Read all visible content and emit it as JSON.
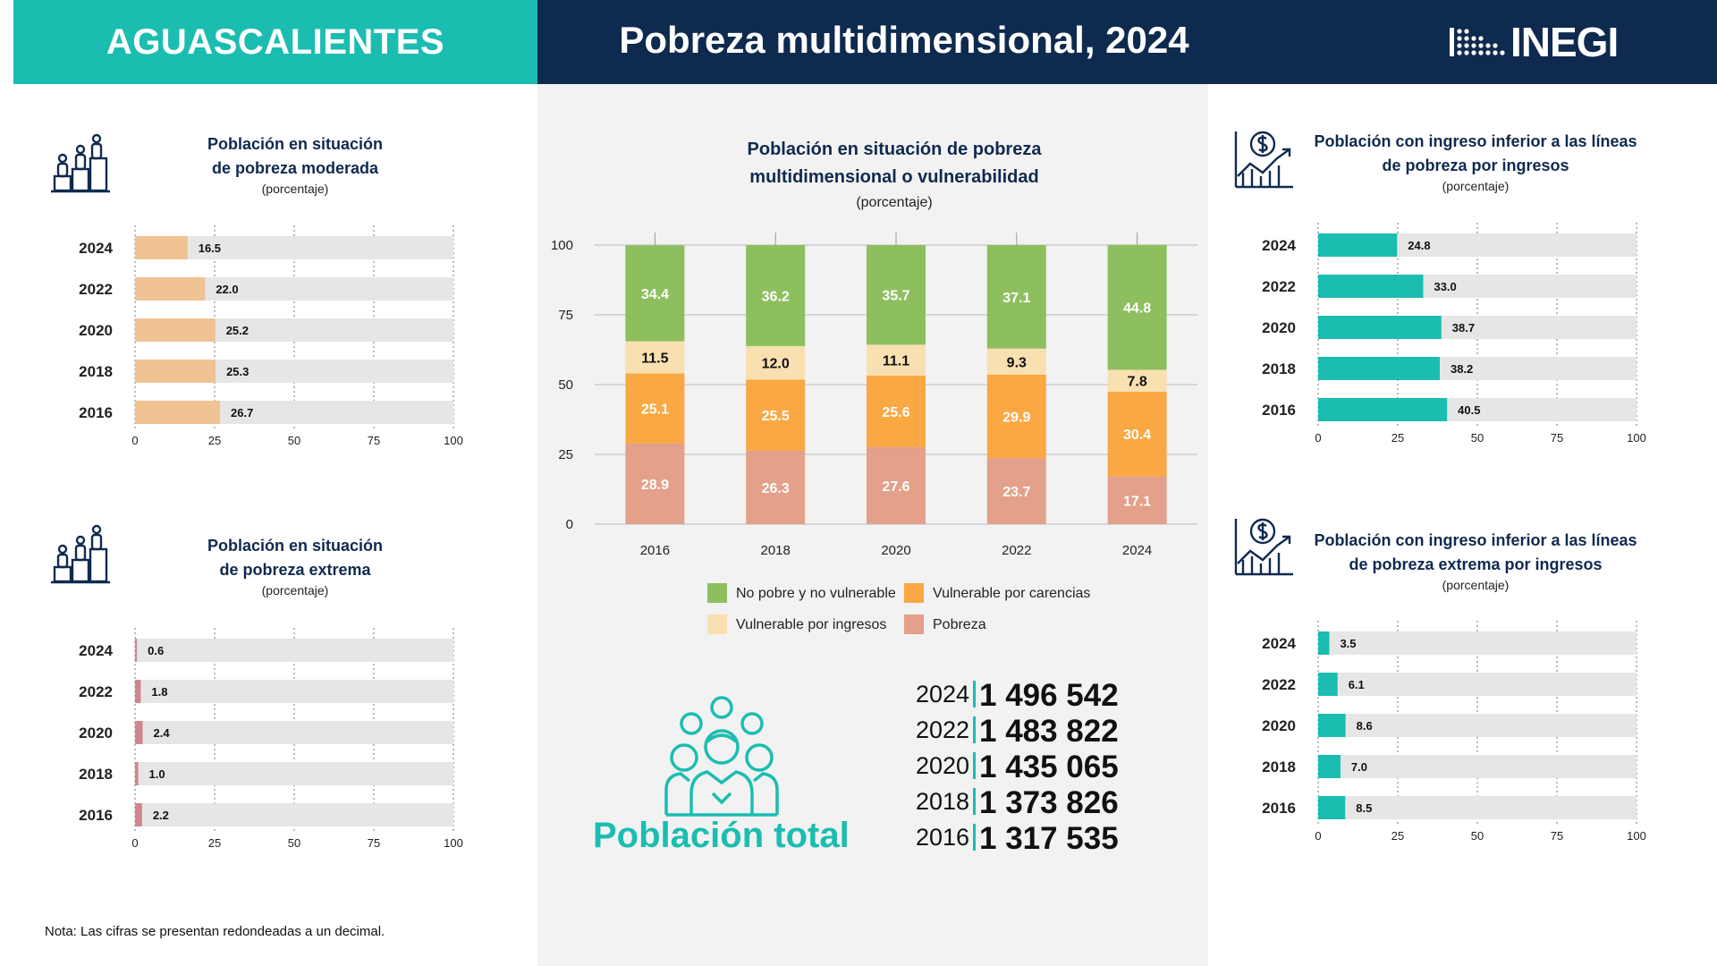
{
  "header": {
    "state": "AGUASCALIENTES",
    "title": "Pobreza multidimensional, 2024",
    "logo": "INEGI"
  },
  "panels": {
    "moderate": {
      "title_lines": [
        "Población en situación",
        "de pobreza moderada"
      ],
      "subtitle": "(porcentaje)",
      "icon": "people-podium-icon"
    },
    "extreme": {
      "title_lines": [
        "Población en situación",
        "de pobreza extrema"
      ],
      "subtitle": "(porcentaje)",
      "icon": "people-podium-icon"
    },
    "main": {
      "title_lines": [
        "Población en situación de pobreza",
        "multidimensional o vulnerabilidad"
      ],
      "subtitle": "(porcentaje)"
    },
    "income": {
      "title_lines": [
        "Población con ingreso inferior a las líneas",
        "de pobreza por ingresos"
      ],
      "subtitle": "(porcentaje)",
      "icon": "money-chart-icon"
    },
    "income_extreme": {
      "title_lines": [
        "Población con ingreso inferior a las líneas",
        "de pobreza extrema por ingresos"
      ],
      "subtitle": "(porcentaje)",
      "icon": "money-chart-icon"
    }
  },
  "population": {
    "label": "Población total",
    "icon": "group-people-icon",
    "rows": [
      {
        "year": "2024",
        "value": "1 496 542"
      },
      {
        "year": "2022",
        "value": "1 483 822"
      },
      {
        "year": "2020",
        "value": "1 435 065"
      },
      {
        "year": "2018",
        "value": "1 373 826"
      },
      {
        "year": "2016",
        "value": "1 317 535"
      }
    ]
  },
  "note": "Nota: Las cifras se presentan redondeadas a un decimal.",
  "colors": {
    "teal": "#1bbdb1",
    "navy": "#0f2a4f",
    "moderate": "#f0c393",
    "extreme": "#d1868d",
    "no_pobre": "#8ebf5f",
    "carencias": "#f9a843",
    "ingresos": "#f9e0b0",
    "pobreza": "#e3a08a",
    "track": "#e6e6e6"
  },
  "chart_data": [
    {
      "id": "moderate",
      "type": "bar",
      "orientation": "horizontal",
      "categories": [
        "2024",
        "2022",
        "2020",
        "2018",
        "2016"
      ],
      "values": [
        16.5,
        22.0,
        25.2,
        25.3,
        26.7
      ],
      "labels": [
        "16.5",
        "22.0",
        "25.2",
        "25.3",
        "26.7"
      ],
      "xlim": [
        0,
        100
      ],
      "ticks": [
        "0",
        "25",
        "50",
        "75",
        "100"
      ],
      "color": "#f0c393"
    },
    {
      "id": "extreme",
      "type": "bar",
      "orientation": "horizontal",
      "categories": [
        "2024",
        "2022",
        "2020",
        "2018",
        "2016"
      ],
      "values": [
        0.6,
        1.8,
        2.4,
        1.0,
        2.2
      ],
      "labels": [
        "0.6",
        "1.8",
        "2.4",
        "1.0",
        "2.2"
      ],
      "xlim": [
        0,
        100
      ],
      "ticks": [
        "0",
        "25",
        "50",
        "75",
        "100"
      ],
      "color": "#d1868d"
    },
    {
      "id": "main",
      "type": "bar",
      "stacked": true,
      "categories": [
        "2016",
        "2018",
        "2020",
        "2022",
        "2024"
      ],
      "ylim": [
        0,
        100
      ],
      "ticks": [
        "0",
        "25",
        "50",
        "75",
        "100"
      ],
      "series": [
        {
          "name": "Pobreza",
          "values": [
            28.9,
            26.3,
            27.6,
            23.7,
            17.1
          ],
          "labels": [
            "28.9",
            "26.3",
            "27.6",
            "23.7",
            "17.1"
          ],
          "color": "#e3a08a",
          "text_color": "#ffffff"
        },
        {
          "name": "Vulnerable por carencias",
          "values": [
            25.1,
            25.5,
            25.6,
            29.9,
            30.4
          ],
          "labels": [
            "25.1",
            "25.5",
            "25.6",
            "29.9",
            "30.4"
          ],
          "color": "#f9a843",
          "text_color": "#ffffff"
        },
        {
          "name": "Vulnerable por ingresos",
          "values": [
            11.5,
            12.0,
            11.1,
            9.3,
            7.8
          ],
          "labels": [
            "11.5",
            "12.0",
            "11.1",
            "9.3",
            "7.8"
          ],
          "color": "#f9e0b0",
          "text_color": "#111111"
        },
        {
          "name": "No pobre y no vulnerable",
          "values": [
            34.4,
            36.2,
            35.7,
            37.1,
            44.8
          ],
          "labels": [
            "34.4",
            "36.2",
            "35.7",
            "37.1",
            "44.8"
          ],
          "color": "#8ebf5f",
          "text_color": "#ffffff"
        }
      ],
      "legend": [
        "No pobre y no vulnerable",
        "Vulnerable por carencias",
        "Vulnerable por ingresos",
        "Pobreza"
      ]
    },
    {
      "id": "income",
      "type": "bar",
      "orientation": "horizontal",
      "categories": [
        "2024",
        "2022",
        "2020",
        "2018",
        "2016"
      ],
      "values": [
        24.8,
        33.0,
        38.7,
        38.2,
        40.5
      ],
      "labels": [
        "24.8",
        "33.0",
        "38.7",
        "38.2",
        "40.5"
      ],
      "xlim": [
        0,
        100
      ],
      "ticks": [
        "0",
        "25",
        "50",
        "75",
        "100"
      ],
      "color": "#1bbdb1"
    },
    {
      "id": "income_extreme",
      "type": "bar",
      "orientation": "horizontal",
      "categories": [
        "2024",
        "2022",
        "2020",
        "2018",
        "2016"
      ],
      "values": [
        3.5,
        6.1,
        8.6,
        7.0,
        8.5
      ],
      "labels": [
        "3.5",
        "6.1",
        "8.6",
        "7.0",
        "8.5"
      ],
      "xlim": [
        0,
        100
      ],
      "ticks": [
        "0",
        "25",
        "50",
        "75",
        "100"
      ],
      "color": "#1bbdb1"
    }
  ]
}
